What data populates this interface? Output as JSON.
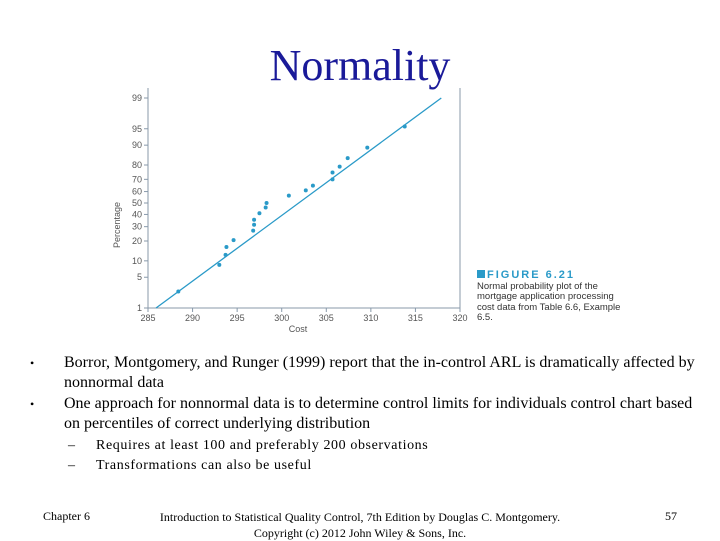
{
  "title": "Normality",
  "chart_data": {
    "type": "scatter",
    "title": "Normal probability plot",
    "xlabel": "Cost",
    "ylabel": "Percentage",
    "x_ticks": [
      285,
      290,
      295,
      300,
      305,
      310,
      315,
      320
    ],
    "y_ticks": [
      1,
      5,
      10,
      20,
      30,
      40,
      50,
      60,
      70,
      80,
      90,
      95,
      99
    ],
    "xlim": [
      285,
      320
    ],
    "points": [
      {
        "x": 288.4,
        "y": 2.5
      },
      {
        "x": 293.0,
        "y": 8.5
      },
      {
        "x": 293.7,
        "y": 12.5
      },
      {
        "x": 293.8,
        "y": 16.5
      },
      {
        "x": 294.6,
        "y": 20.5
      },
      {
        "x": 296.8,
        "y": 27.0
      },
      {
        "x": 296.9,
        "y": 31.5
      },
      {
        "x": 296.9,
        "y": 35.5
      },
      {
        "x": 297.5,
        "y": 41.0
      },
      {
        "x": 298.2,
        "y": 46.0
      },
      {
        "x": 298.3,
        "y": 50.0
      },
      {
        "x": 300.8,
        "y": 56.5
      },
      {
        "x": 302.7,
        "y": 61.0
      },
      {
        "x": 303.5,
        "y": 65.0
      },
      {
        "x": 305.7,
        "y": 70.0
      },
      {
        "x": 305.7,
        "y": 75.0
      },
      {
        "x": 306.5,
        "y": 79.0
      },
      {
        "x": 307.4,
        "y": 84.0
      },
      {
        "x": 309.6,
        "y": 89.0
      },
      {
        "x": 313.8,
        "y": 95.5
      }
    ],
    "fit_line": {
      "x": [
        285.9,
        317.9
      ],
      "y": [
        1,
        99
      ]
    },
    "colors": {
      "points": "#2a9ac8",
      "line": "#2a9ac8",
      "axis": "#8899aa"
    }
  },
  "figure_caption": {
    "label": "FIGURE 6.21",
    "text": "Normal probability plot of the mortgage application processing cost data from Table 6.6, Example 6.5."
  },
  "bullets": [
    "Borror, Montgomery, and Runger (1999) report that the in-control ARL is dramatically affected by nonnormal data",
    "One approach for nonnormal data is to determine control limits for individuals control chart based on percentiles of correct underlying distribution"
  ],
  "sub_bullets": [
    "Requires at least 100 and preferably 200 observations",
    "Transformations can also be useful"
  ],
  "footer": {
    "chapter": "Chapter 6",
    "book_line1": "Introduction to Statistical Quality Control, 7th Edition by Douglas C. Montgomery.",
    "book_line2": "Copyright (c) 2012  John Wiley & Sons, Inc.",
    "page": "57"
  }
}
